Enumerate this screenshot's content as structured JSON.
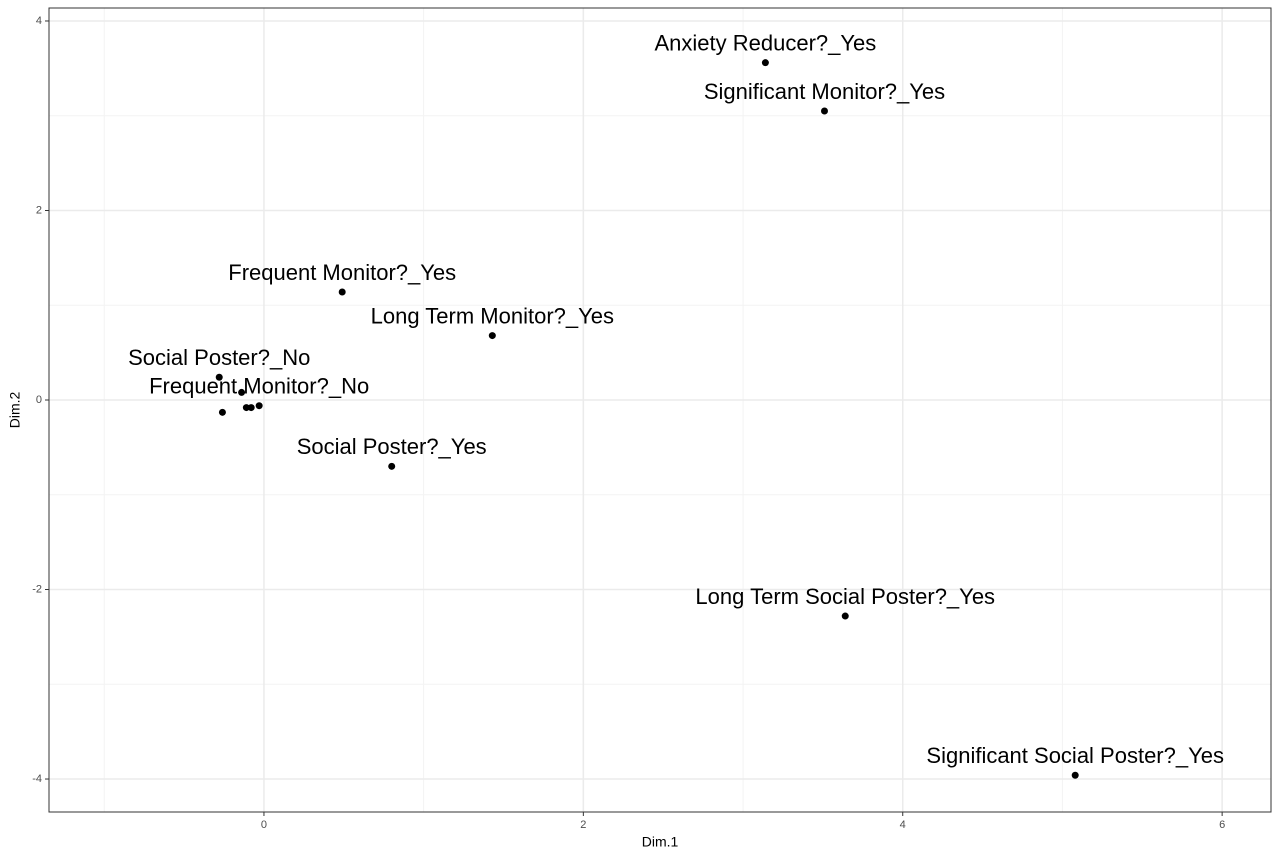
{
  "chart_data": {
    "type": "scatter",
    "xlabel": "Dim.1",
    "ylabel": "Dim.2",
    "x": [
      3.14,
      3.51,
      0.49,
      1.43,
      -0.28,
      -0.03,
      -0.14,
      -0.11,
      -0.08,
      -0.26,
      0.8,
      3.64,
      5.08
    ],
    "values": [
      3.56,
      3.05,
      1.14,
      0.68,
      0.24,
      -0.06,
      0.08,
      -0.08,
      -0.08,
      -0.13,
      -0.7,
      -2.28,
      -3.96
    ],
    "labels": [
      "Anxiety Reducer?_Yes",
      "Significant Monitor?_Yes",
      "Frequent Monitor?_Yes",
      "Long Term Monitor?_Yes",
      "Social Poster?_No",
      "Frequent Monitor?_No",
      null,
      null,
      null,
      null,
      "Social Poster?_Yes",
      "Long Term Social Poster?_Yes",
      "Significant Social Poster?_Yes"
    ],
    "color": "#000000",
    "xlim": [
      -1.346,
      6.306
    ],
    "ylim": [
      -4.348,
      4.137
    ],
    "xticks": [
      0,
      2,
      4,
      6
    ],
    "yticks": [
      -4,
      -2,
      0,
      2,
      4
    ],
    "grid": true
  }
}
